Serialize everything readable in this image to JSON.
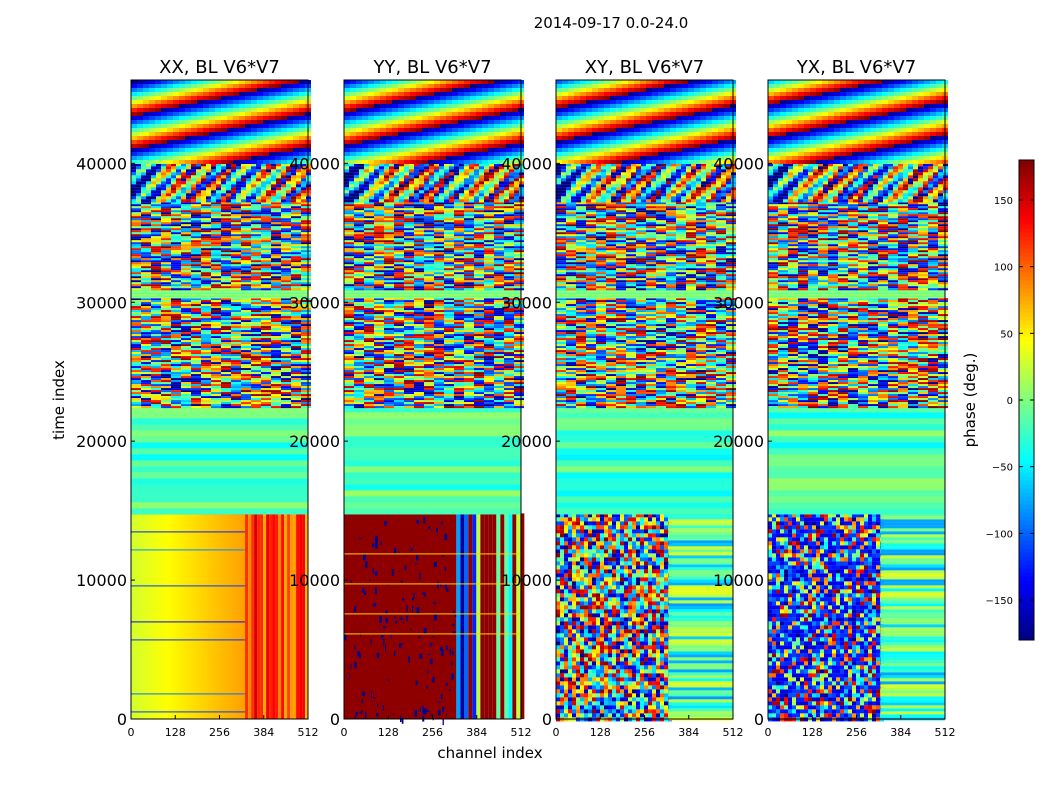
{
  "chart_data": {
    "type": "heatmap",
    "suptitle": "2014-09-17 0.0-24.0",
    "xlabel": "channel index",
    "ylabel": "time index",
    "xlim": [
      0,
      512
    ],
    "ylim": [
      0,
      46000
    ],
    "xticks": [
      0,
      128,
      256,
      384,
      512
    ],
    "yticks": [
      0,
      10000,
      20000,
      30000,
      40000
    ],
    "panels": [
      {
        "title": "XX, BL V6*V7",
        "key": "XX",
        "low_mode": "gradient",
        "low_phase_range": [
          30,
          110
        ],
        "low_split_channel": 330
      },
      {
        "title": "YY, BL V6*V7",
        "key": "YY",
        "low_mode": "saturated",
        "low_phase_range": [
          150,
          180
        ],
        "low_split_channel": 325
      },
      {
        "title": "XY, BL V6*V7",
        "key": "XY",
        "low_mode": "noise",
        "low_phase_range": [
          -180,
          180
        ],
        "low_split_channel": 325
      },
      {
        "title": "YX, BL V6*V7",
        "key": "YX",
        "low_mode": "noise-blue",
        "low_phase_range": [
          -180,
          180
        ],
        "low_split_channel": 325
      }
    ],
    "time_segments": [
      {
        "from": 0,
        "to": 14800,
        "pattern": "low-mode"
      },
      {
        "from": 14800,
        "to": 22500,
        "pattern": "horizontal-bands"
      },
      {
        "from": 22500,
        "to": 30300,
        "pattern": "fine-stripes"
      },
      {
        "from": 30300,
        "to": 31000,
        "pattern": "green-gap"
      },
      {
        "from": 31000,
        "to": 37200,
        "pattern": "fine-stripes"
      },
      {
        "from": 37200,
        "to": 40000,
        "pattern": "wavy-fringes"
      },
      {
        "from": 40000,
        "to": 46000,
        "pattern": "fringe-rainbow"
      }
    ],
    "colorbar": {
      "label": "phase (deg.)",
      "colormap": "jet",
      "range": [
        -180,
        180
      ],
      "ticks": [
        -150,
        -100,
        -50,
        0,
        50,
        100,
        150
      ],
      "tick_labels": [
        "−150",
        "−100",
        "−50",
        "0",
        "50",
        "100",
        "150"
      ]
    }
  }
}
